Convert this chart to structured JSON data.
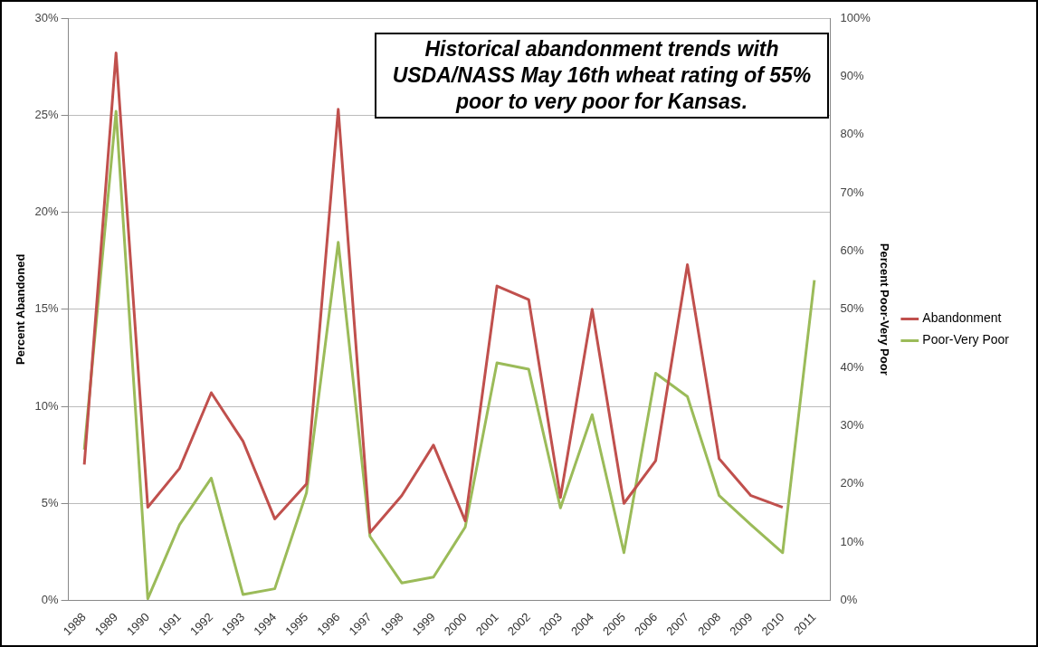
{
  "chart_data": {
    "type": "line",
    "title": "Historical abandonment trends with USDA/NASS May 16th wheat rating of 55% poor to very poor for Kansas.",
    "ylabel": "Percent Abandoned",
    "y2label": "Percent Poor-Very Poor",
    "categories": [
      "1988",
      "1989",
      "1990",
      "1991",
      "1992",
      "1993",
      "1994",
      "1995",
      "1996",
      "1997",
      "1998",
      "1999",
      "2000",
      "2001",
      "2002",
      "2003",
      "2004",
      "2005",
      "2006",
      "2007",
      "2008",
      "2009",
      "2010",
      "2011"
    ],
    "series": [
      {
        "name": "Abandonment",
        "color": "#c0504d",
        "values": [
          7,
          28.2,
          4.8,
          6.8,
          10.7,
          8.2,
          4.2,
          6,
          25.3,
          3.5,
          5.4,
          8,
          4.1,
          16.2,
          15.5,
          5.3,
          15,
          5,
          7.2,
          17.3,
          7.3,
          5.4,
          4.8,
          null
        ]
      },
      {
        "name": "Poor-Very Poor",
        "color": "#9bbb59",
        "axis": "y2",
        "values": [
          25.9,
          84,
          0.3,
          13,
          21,
          1,
          2,
          18.5,
          61.5,
          11,
          3,
          4,
          12.6,
          40.8,
          39.7,
          15.9,
          31.9,
          8.2,
          39,
          35,
          18,
          13,
          8.2,
          55
        ]
      }
    ],
    "ylim": [
      0,
      30
    ],
    "yticks": [
      {
        "value": 0,
        "label": "0%"
      },
      {
        "value": 5,
        "label": "5%"
      },
      {
        "value": 10,
        "label": "10%"
      },
      {
        "value": 15,
        "label": "15%"
      },
      {
        "value": 20,
        "label": "20%"
      },
      {
        "value": 25,
        "label": "25%"
      },
      {
        "value": 30,
        "label": "30%"
      }
    ],
    "y2lim": [
      0,
      100
    ],
    "y2ticks": [
      {
        "value": 0,
        "label": "0%"
      },
      {
        "value": 10,
        "label": "10%"
      },
      {
        "value": 20,
        "label": "20%"
      },
      {
        "value": 30,
        "label": "30%"
      },
      {
        "value": 40,
        "label": "40%"
      },
      {
        "value": 50,
        "label": "50%"
      },
      {
        "value": 60,
        "label": "60%"
      },
      {
        "value": 70,
        "label": "70%"
      },
      {
        "value": 80,
        "label": "80%"
      },
      {
        "value": 90,
        "label": "90%"
      },
      {
        "value": 100,
        "label": "100%"
      }
    ],
    "grid": "y",
    "legend": "right",
    "marker": "none",
    "line_style": "solid"
  }
}
